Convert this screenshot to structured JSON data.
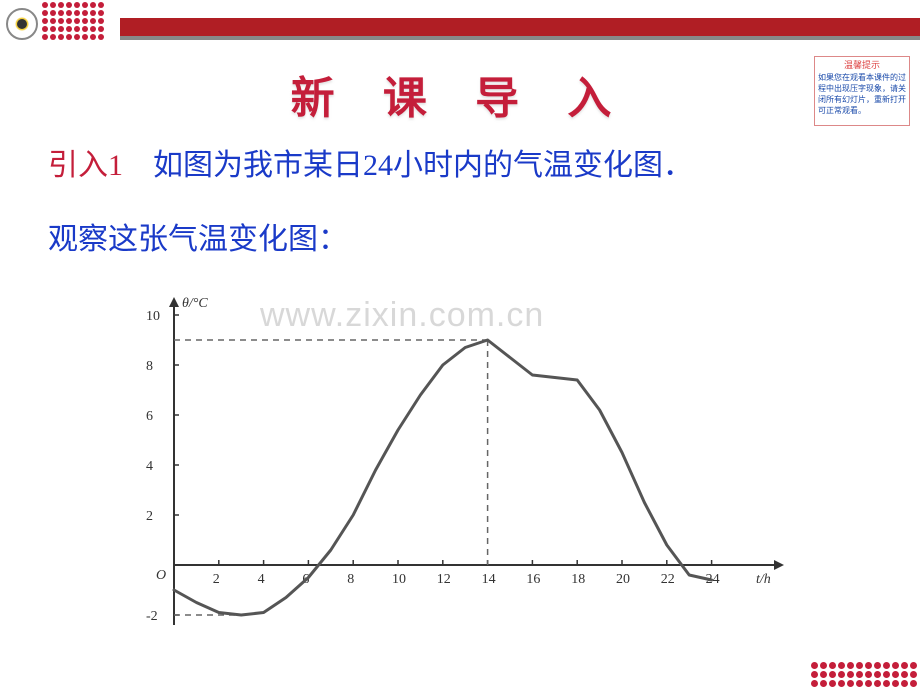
{
  "title": "新 课 导 入",
  "tipbox": {
    "title": "温馨提示",
    "body": "如果您在观看本课件的过程中出现压字现象，请关闭所有幻灯片，重新打开可正常观看。"
  },
  "intro1": {
    "label": "引入1",
    "body": "　如图为我市某日24小时内的气温变化图．"
  },
  "intro2": "观察这张气温变化图：",
  "watermark": "www.zixin.com.cn",
  "chart": {
    "type": "line",
    "x_axis_label": "t/h",
    "y_axis_label": "θ/°C",
    "x_ticks": [
      2,
      4,
      6,
      8,
      10,
      12,
      14,
      16,
      18,
      20,
      22,
      24
    ],
    "y_ticks": [
      -2,
      2,
      4,
      6,
      8,
      10
    ],
    "xlim": [
      0,
      25
    ],
    "ylim": [
      -3,
      11
    ],
    "curve_color": "#555555",
    "curve_width": 3,
    "axis_color": "#333333",
    "dashed_color": "#666666",
    "background_color": "#ffffff",
    "axis_fontsize": 14,
    "curve_points": [
      [
        0,
        -1.0
      ],
      [
        1,
        -1.5
      ],
      [
        2,
        -1.9
      ],
      [
        3,
        -2.0
      ],
      [
        4,
        -1.9
      ],
      [
        5,
        -1.3
      ],
      [
        6,
        -0.5
      ],
      [
        7,
        0.6
      ],
      [
        8,
        2.0
      ],
      [
        9,
        3.8
      ],
      [
        10,
        5.4
      ],
      [
        11,
        6.8
      ],
      [
        12,
        8.0
      ],
      [
        13,
        8.7
      ],
      [
        14,
        9.0
      ],
      [
        15,
        8.3
      ],
      [
        16,
        7.6
      ],
      [
        17,
        7.5
      ],
      [
        18,
        7.4
      ],
      [
        19,
        6.2
      ],
      [
        20,
        4.5
      ],
      [
        21,
        2.5
      ],
      [
        22,
        0.8
      ],
      [
        23,
        -0.4
      ],
      [
        24,
        -0.6
      ]
    ],
    "dashed_lines": [
      {
        "from": [
          0,
          9
        ],
        "to": [
          14,
          9
        ]
      },
      {
        "from": [
          14,
          9
        ],
        "to": [
          14,
          0
        ]
      },
      {
        "from": [
          0,
          -2
        ],
        "to": [
          3,
          -2
        ]
      }
    ]
  }
}
